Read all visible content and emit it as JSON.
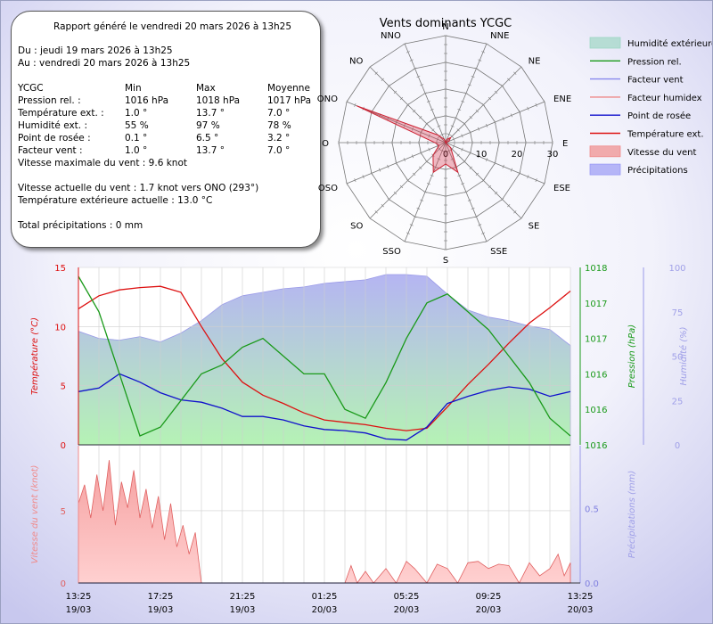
{
  "report": {
    "generated": "Rapport généré le vendredi 20 mars 2026 à 13h25",
    "from": "Du : jeudi 19 mars 2026 à 13h25",
    "to": "Au : vendredi 20 mars 2026 à 13h25",
    "station": "YCGC",
    "col_min": "Min",
    "col_max": "Max",
    "col_avg": "Moyenne",
    "rows": [
      {
        "label": "Pression rel. :",
        "min": "1016 hPa",
        "max": "1018 hPa",
        "avg": "1017 hPa"
      },
      {
        "label": "Température ext. :",
        "min": "1.0 °",
        "max": "13.7 °",
        "avg": "7.0 °"
      },
      {
        "label": "Humidité ext. :",
        "min": "55 %",
        "max": "97 %",
        "avg": "78 %"
      },
      {
        "label": "Point de rosée :",
        "min": "0.1 °",
        "max": "6.5 °",
        "avg": "3.2 °"
      },
      {
        "label": "Facteur vent :",
        "min": "1.0 °",
        "max": "13.7 °",
        "avg": "7.0 °"
      }
    ],
    "max_wind": "Vitesse maximale du vent : 9.6 knot",
    "current_wind": "Vitesse actuelle du vent : 1.7 knot vers  ONO (293°)",
    "current_temp": "Température extérieure actuelle :  13.0 °C",
    "total_precip": "Total précipitations :  0 mm"
  },
  "legend": [
    {
      "label": "Humidité extérieure",
      "color": "#9fd7c4",
      "kind": "fill"
    },
    {
      "label": "Pression rel.",
      "color": "#1a9a1a",
      "kind": "line"
    },
    {
      "label": "Facteur vent",
      "color": "#8888ee",
      "kind": "line"
    },
    {
      "label": "Facteur humidex",
      "color": "#ee8888",
      "kind": "line"
    },
    {
      "label": "Point de rosée",
      "color": "#1010cc",
      "kind": "line"
    },
    {
      "label": "Température ext.",
      "color": "#dd1111",
      "kind": "line"
    },
    {
      "label": "Vitesse du vent",
      "color": "#f08a8a",
      "kind": "fill"
    },
    {
      "label": "Précipitations",
      "color": "#9a9af5",
      "kind": "fill"
    }
  ],
  "chart_data": [
    {
      "type": "radar",
      "title": "Vents dominants YCGC",
      "directions": [
        "N",
        "NNE",
        "NE",
        "ENE",
        "E",
        "ESE",
        "SE",
        "SSE",
        "S",
        "SSO",
        "SO",
        "OSO",
        "O",
        "ONO",
        "NO",
        "NNO"
      ],
      "ticks": [
        0,
        10,
        20,
        30
      ],
      "rmax": 30,
      "series": [
        {
          "color": "#cc2233",
          "values": [
            0,
            1,
            2,
            1,
            0,
            0,
            2,
            9,
            6,
            9,
            5,
            2,
            3,
            27,
            3,
            1
          ]
        }
      ]
    },
    {
      "type": "line",
      "x_ticks": [
        "13:25\n19/03",
        "17:25\n19/03",
        "21:25\n19/03",
        "01:25\n20/03",
        "05:25\n20/03",
        "09:25\n20/03",
        "13:25\n20/03"
      ],
      "x_hours": [
        0,
        24
      ],
      "ylabel_left": "Température (°C)",
      "ylim_left": [
        0,
        15
      ],
      "yticks_left": [
        "0",
        "5",
        "10",
        "15"
      ],
      "ylabel_right1": "Pression (hPa)",
      "ylim_right1": [
        1016,
        1018
      ],
      "yticks_right1": [
        "1016",
        "1016",
        "1016",
        "1017",
        "1017",
        "1018"
      ],
      "ylabel_right2": "Humidité (%)",
      "ylim_right2": [
        0,
        100
      ],
      "yticks_right2": [
        "0",
        "25",
        "50",
        "75",
        "100"
      ],
      "series": [
        {
          "name": "Température ext.",
          "color": "#dd1111",
          "axis": "left",
          "x": [
            0,
            1,
            2,
            3,
            4,
            5,
            6,
            7,
            8,
            9,
            10,
            11,
            12,
            13,
            14,
            15,
            16,
            17,
            18,
            19,
            20,
            21,
            22,
            23,
            24
          ],
          "y": [
            11.5,
            12.6,
            13.1,
            13.3,
            13.4,
            12.9,
            10.0,
            7.3,
            5.3,
            4.2,
            3.5,
            2.7,
            2.1,
            1.9,
            1.7,
            1.4,
            1.2,
            1.4,
            3.2,
            5.1,
            6.8,
            8.6,
            10.3,
            11.6,
            13.0
          ]
        },
        {
          "name": "Point de rosée",
          "color": "#1010cc",
          "axis": "left",
          "x": [
            0,
            1,
            2,
            3,
            4,
            5,
            6,
            7,
            8,
            9,
            10,
            11,
            12,
            13,
            14,
            15,
            16,
            17,
            18,
            19,
            20,
            21,
            22,
            23,
            24
          ],
          "y": [
            4.5,
            4.8,
            6.0,
            5.3,
            4.4,
            3.8,
            3.6,
            3.1,
            2.4,
            2.4,
            2.1,
            1.6,
            1.3,
            1.2,
            1.0,
            0.5,
            0.4,
            1.5,
            3.5,
            4.1,
            4.6,
            4.9,
            4.7,
            4.1,
            4.5
          ]
        },
        {
          "name": "Pression rel.",
          "color": "#1a9a1a",
          "axis": "right1",
          "x": [
            0,
            1,
            2,
            3,
            4,
            5,
            6,
            7,
            8,
            9,
            10,
            11,
            12,
            13,
            14,
            15,
            16,
            17,
            18,
            19,
            20,
            21,
            22,
            23,
            24
          ],
          "y": [
            1017.9,
            1017.5,
            1016.8,
            1016.1,
            1016.2,
            1016.5,
            1016.8,
            1016.9,
            1017.1,
            1017.2,
            1017.0,
            1016.8,
            1016.8,
            1016.4,
            1016.3,
            1016.7,
            1017.2,
            1017.6,
            1017.7,
            1017.5,
            1017.3,
            1017.0,
            1016.7,
            1016.3,
            1016.1
          ]
        },
        {
          "name": "Humidité extérieure",
          "color": "#9fd7c4",
          "axis": "right2",
          "kind": "area",
          "x": [
            0,
            1,
            2,
            3,
            4,
            5,
            6,
            7,
            8,
            9,
            10,
            11,
            12,
            13,
            14,
            15,
            16,
            17,
            18,
            19,
            20,
            21,
            22,
            23,
            24
          ],
          "y": [
            64,
            60,
            59,
            61,
            58,
            63,
            70,
            79,
            84,
            86,
            88,
            89,
            91,
            92,
            93,
            96,
            96,
            95,
            85,
            76,
            72,
            70,
            67,
            65,
            56
          ]
        }
      ]
    },
    {
      "type": "area",
      "ylabel_left": "Vitesse du vent (knot)",
      "ylim_left": [
        0,
        9.5
      ],
      "yticks_left": [
        "0",
        "5"
      ],
      "ylabel_right": "Précipitations (mm)",
      "ylim_right": [
        0,
        0.92
      ],
      "yticks_right": [
        "0.0",
        "0.5"
      ],
      "series": [
        {
          "name": "Vitesse du vent",
          "color": "#f08a8a",
          "x": [
            0,
            0.3,
            0.6,
            0.9,
            1.2,
            1.5,
            1.8,
            2.1,
            2.4,
            2.7,
            3.0,
            3.3,
            3.6,
            3.9,
            4.2,
            4.5,
            4.8,
            5.1,
            5.4,
            5.7,
            6.0,
            6.5,
            7,
            8,
            9,
            10,
            11,
            12,
            13,
            13.3,
            13.6,
            14,
            14.4,
            15,
            15.5,
            16,
            16.4,
            17,
            17.5,
            18,
            18.5,
            19,
            19.5,
            20,
            20.5,
            21,
            21.5,
            22,
            22.5,
            23,
            23.4,
            23.7,
            24
          ],
          "y": [
            5.5,
            6.8,
            4.5,
            7.5,
            5.0,
            8.5,
            4.0,
            7.0,
            5.2,
            7.8,
            4.5,
            6.5,
            3.8,
            6.0,
            3.0,
            5.5,
            2.5,
            4.0,
            2.0,
            3.5,
            0,
            0,
            0,
            0,
            0,
            0,
            0,
            0,
            0,
            1.2,
            0,
            0.8,
            0,
            1.0,
            0,
            1.5,
            1.0,
            0,
            1.3,
            1.0,
            0,
            1.4,
            1.5,
            1.0,
            1.3,
            1.2,
            0,
            1.4,
            0.5,
            1.0,
            2.0,
            0.5,
            1.4
          ]
        },
        {
          "name": "Précipitations",
          "color": "#9a9af5",
          "x": [
            0,
            24
          ],
          "y": [
            0,
            0
          ]
        }
      ]
    }
  ]
}
